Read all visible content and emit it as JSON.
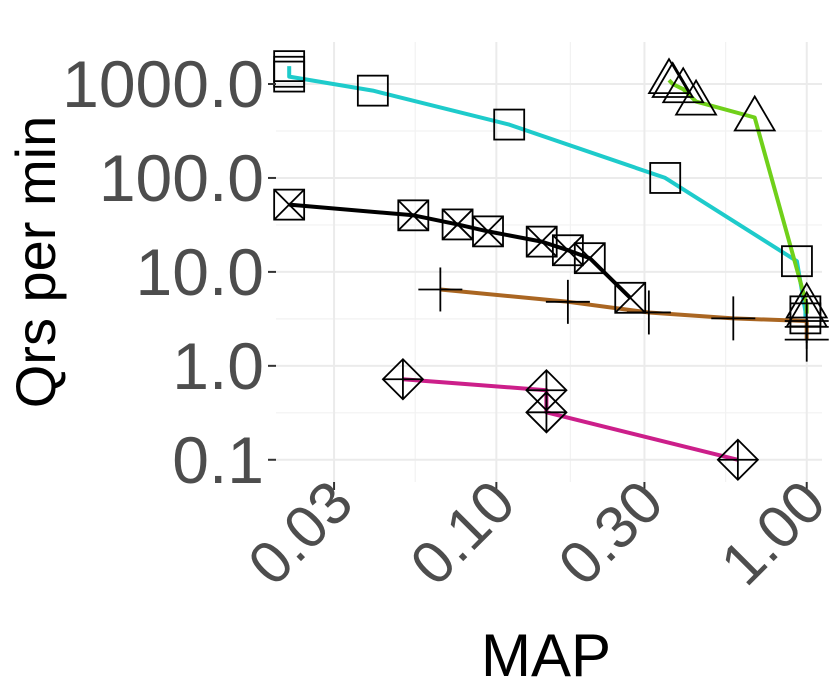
{
  "chart_data": {
    "type": "line",
    "xlabel": "MAP",
    "ylabel": "Qrs per min",
    "x_scale": "log10",
    "y_scale": "log10",
    "xlim": [
      0.0195,
      1.12
    ],
    "ylim": [
      0.058,
      2800
    ],
    "x_ticks": [
      0.03,
      0.1,
      0.3,
      1.0
    ],
    "x_tick_labels": [
      "0.03",
      "0.10",
      "0.30",
      "1.00"
    ],
    "y_ticks": [
      0.1,
      1.0,
      10.0,
      100.0,
      1000.0
    ],
    "y_tick_labels": [
      "0.1",
      "1.0",
      "10.0",
      "100.0",
      "1000.0"
    ],
    "grid": true,
    "legend": "none",
    "series": [
      {
        "color": "#1ecbcb",
        "marker": "square",
        "x": [
          0.0215,
          0.0215,
          0.0215,
          0.04,
          0.11,
          0.35,
          0.93,
          0.99,
          0.99
        ],
        "y": [
          1550,
          1350,
          1200,
          850,
          370,
          100,
          13,
          3.8,
          3.2
        ]
      },
      {
        "color": "#70d01a",
        "marker": "triangle",
        "x": [
          0.36,
          0.37,
          0.4,
          0.44,
          0.68,
          1.0,
          1.0
        ],
        "y": [
          1100,
          1000,
          880,
          650,
          440,
          4.5,
          3.6
        ]
      },
      {
        "color": "#000000",
        "marker": "square-x",
        "x": [
          0.0215,
          0.054,
          0.075,
          0.094,
          0.14,
          0.17,
          0.2,
          0.27
        ],
        "y": [
          52,
          40,
          32,
          27,
          21,
          17,
          14,
          5.3
        ]
      },
      {
        "color": "#aa6622",
        "marker": "plus",
        "x": [
          0.066,
          0.17,
          0.31,
          0.58,
          1.0,
          1.0,
          1.0
        ],
        "y": [
          6.5,
          4.8,
          3.7,
          3.2,
          3.0,
          2.6,
          1.9
        ]
      },
      {
        "color": "#cc1f8a",
        "marker": "diamond-plus",
        "x": [
          0.05,
          0.145,
          0.145,
          0.6
        ],
        "y": [
          0.72,
          0.55,
          0.32,
          0.1
        ]
      }
    ]
  }
}
